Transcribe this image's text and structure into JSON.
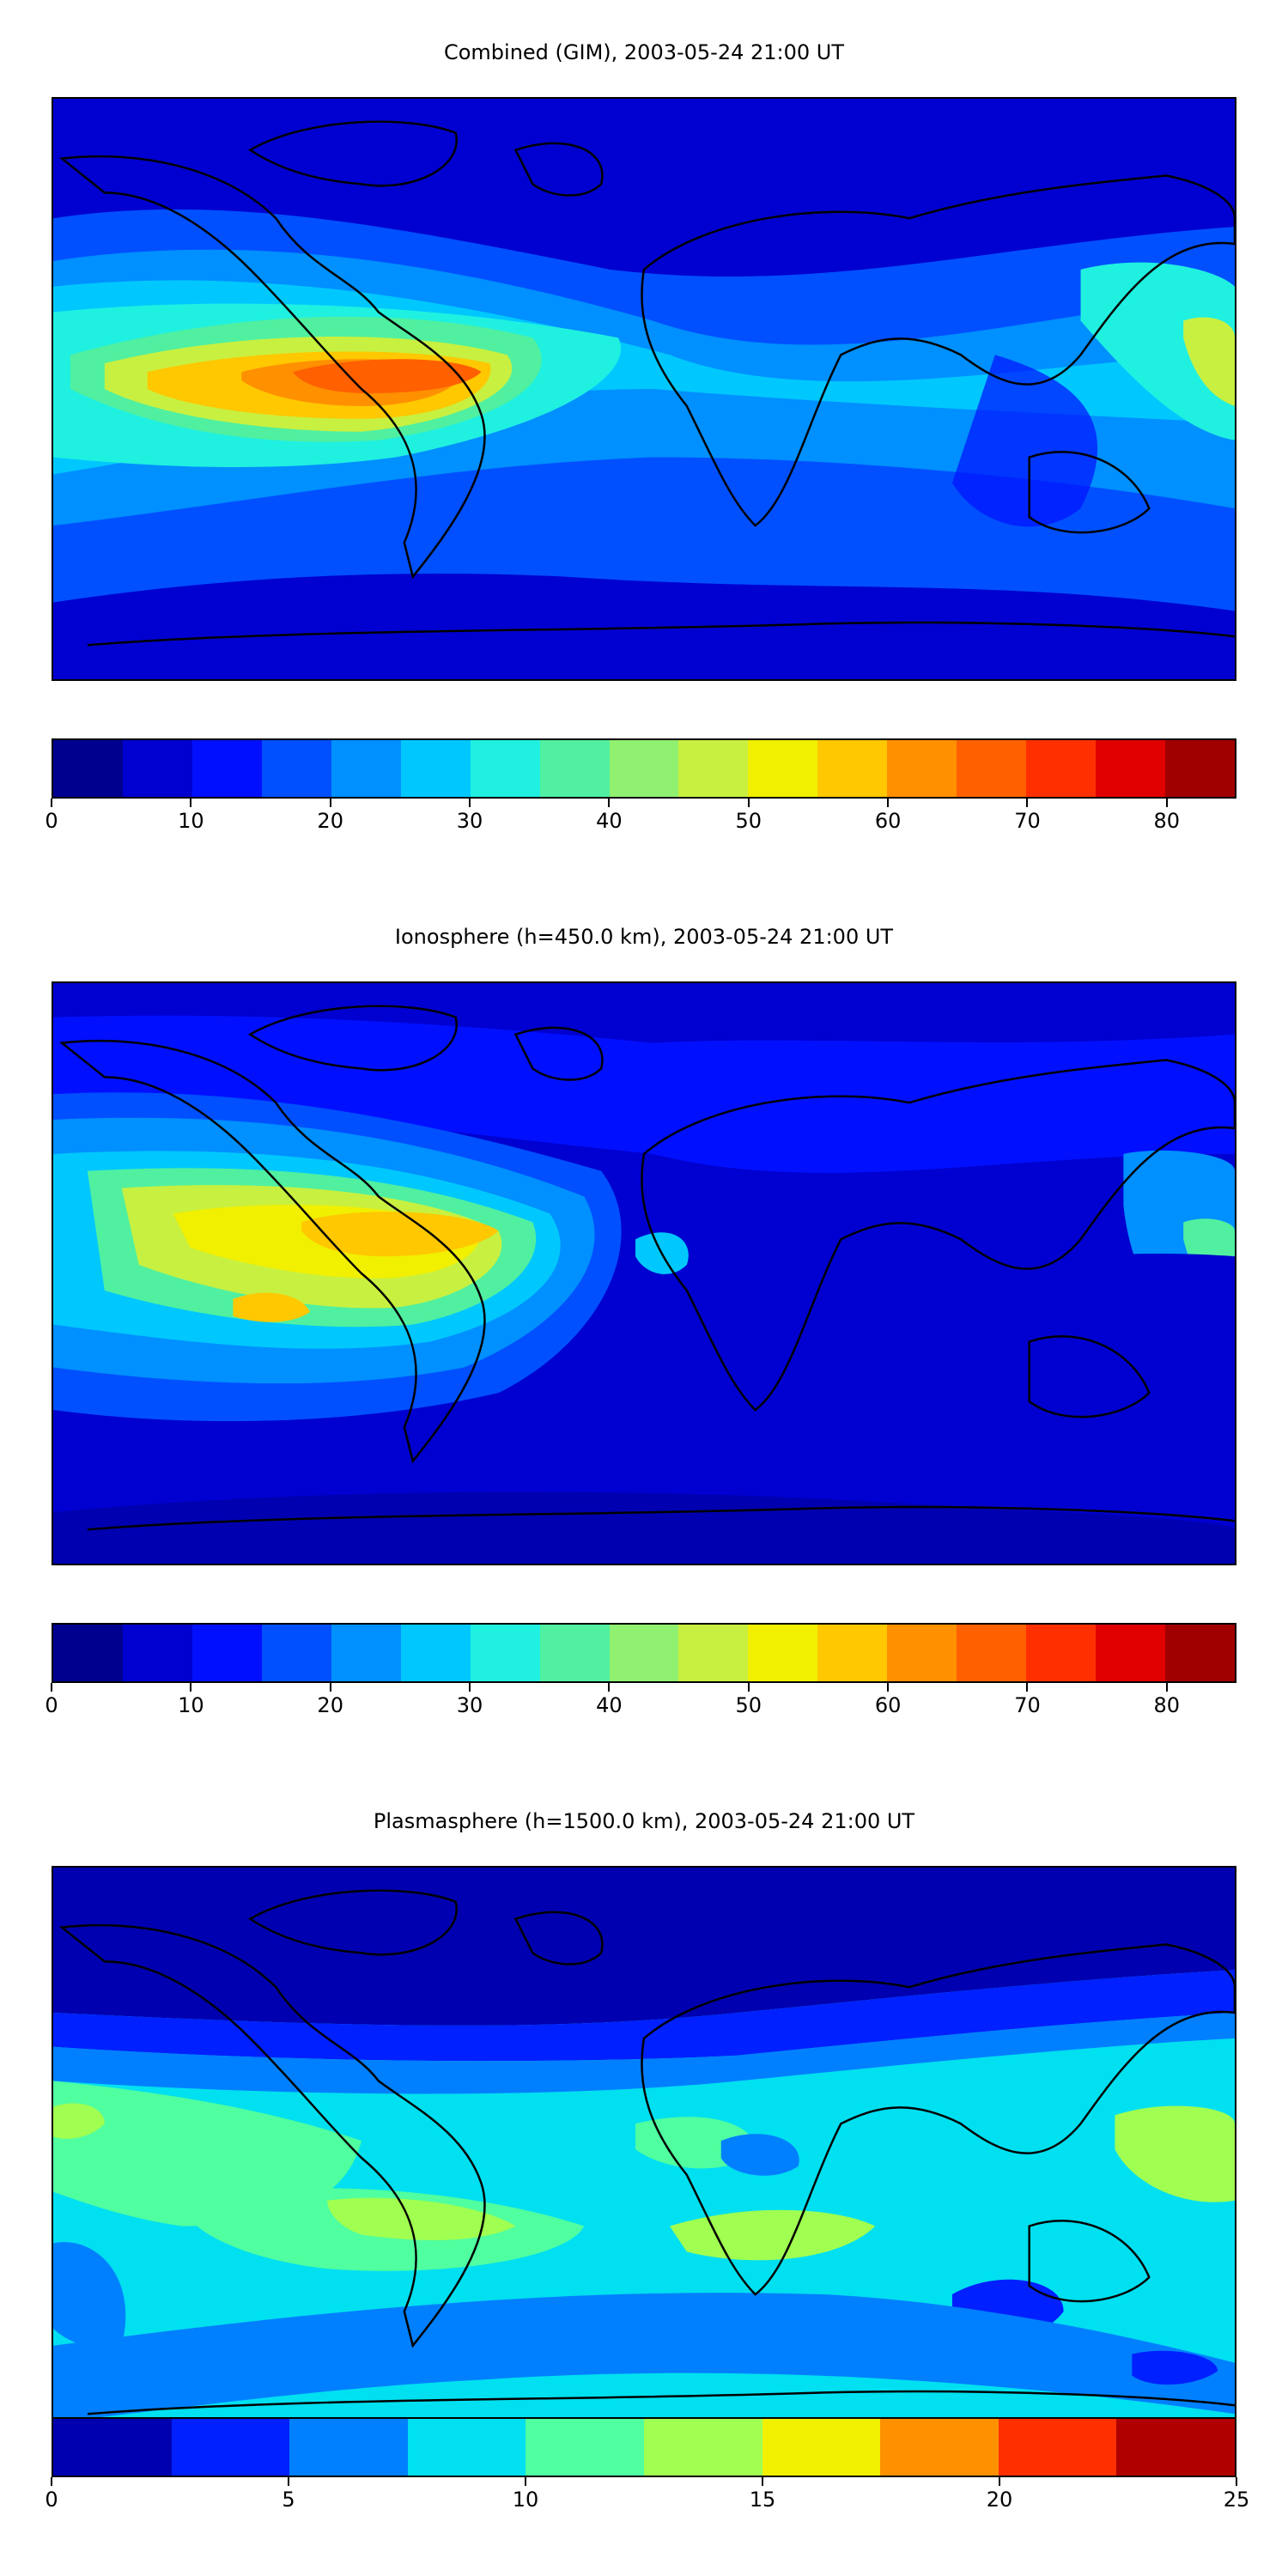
{
  "panels": [
    {
      "title": "Combined (GIM), 2003-05-24 21:00 UT",
      "colorbar": {
        "min": 0,
        "max": 85,
        "colors": [
          "#00008f",
          "#0000d0",
          "#0010ff",
          "#0050ff",
          "#0090ff",
          "#00c8ff",
          "#20f0e0",
          "#50f0a0",
          "#90f070",
          "#c8f040",
          "#f0f000",
          "#ffc800",
          "#ff9000",
          "#ff6000",
          "#ff3000",
          "#e00000",
          "#a00000"
        ],
        "ticks": [
          "0",
          "10",
          "20",
          "30",
          "40",
          "50",
          "60",
          "70",
          "80"
        ],
        "tick_values": [
          0,
          10,
          20,
          30,
          40,
          50,
          60,
          70,
          80
        ]
      }
    },
    {
      "title": "Ionosphere  (h=450.0 km), 2003-05-24 21:00 UT",
      "colorbar": {
        "min": 0,
        "max": 85,
        "colors": [
          "#00008f",
          "#0000d0",
          "#0010ff",
          "#0050ff",
          "#0090ff",
          "#00c8ff",
          "#20f0e0",
          "#50f0a0",
          "#90f070",
          "#c8f040",
          "#f0f000",
          "#ffc800",
          "#ff9000",
          "#ff6000",
          "#ff3000",
          "#e00000",
          "#a00000"
        ],
        "ticks": [
          "0",
          "10",
          "20",
          "30",
          "40",
          "50",
          "60",
          "70",
          "80"
        ],
        "tick_values": [
          0,
          10,
          20,
          30,
          40,
          50,
          60,
          70,
          80
        ]
      }
    },
    {
      "title": "Plasmasphere (h=1500.0 km), 2003-05-24 21:00 UT",
      "colorbar": {
        "min": 0,
        "max": 25,
        "colors": [
          "#0000b0",
          "#0020ff",
          "#0080ff",
          "#00e0f0",
          "#50ffa0",
          "#a0ff50",
          "#f0f000",
          "#ff9000",
          "#ff3000",
          "#b00000"
        ],
        "ticks": [
          "0",
          "5",
          "10",
          "15",
          "20",
          "25"
        ],
        "tick_values": [
          0,
          5,
          10,
          15,
          20,
          25
        ]
      }
    }
  ]
}
